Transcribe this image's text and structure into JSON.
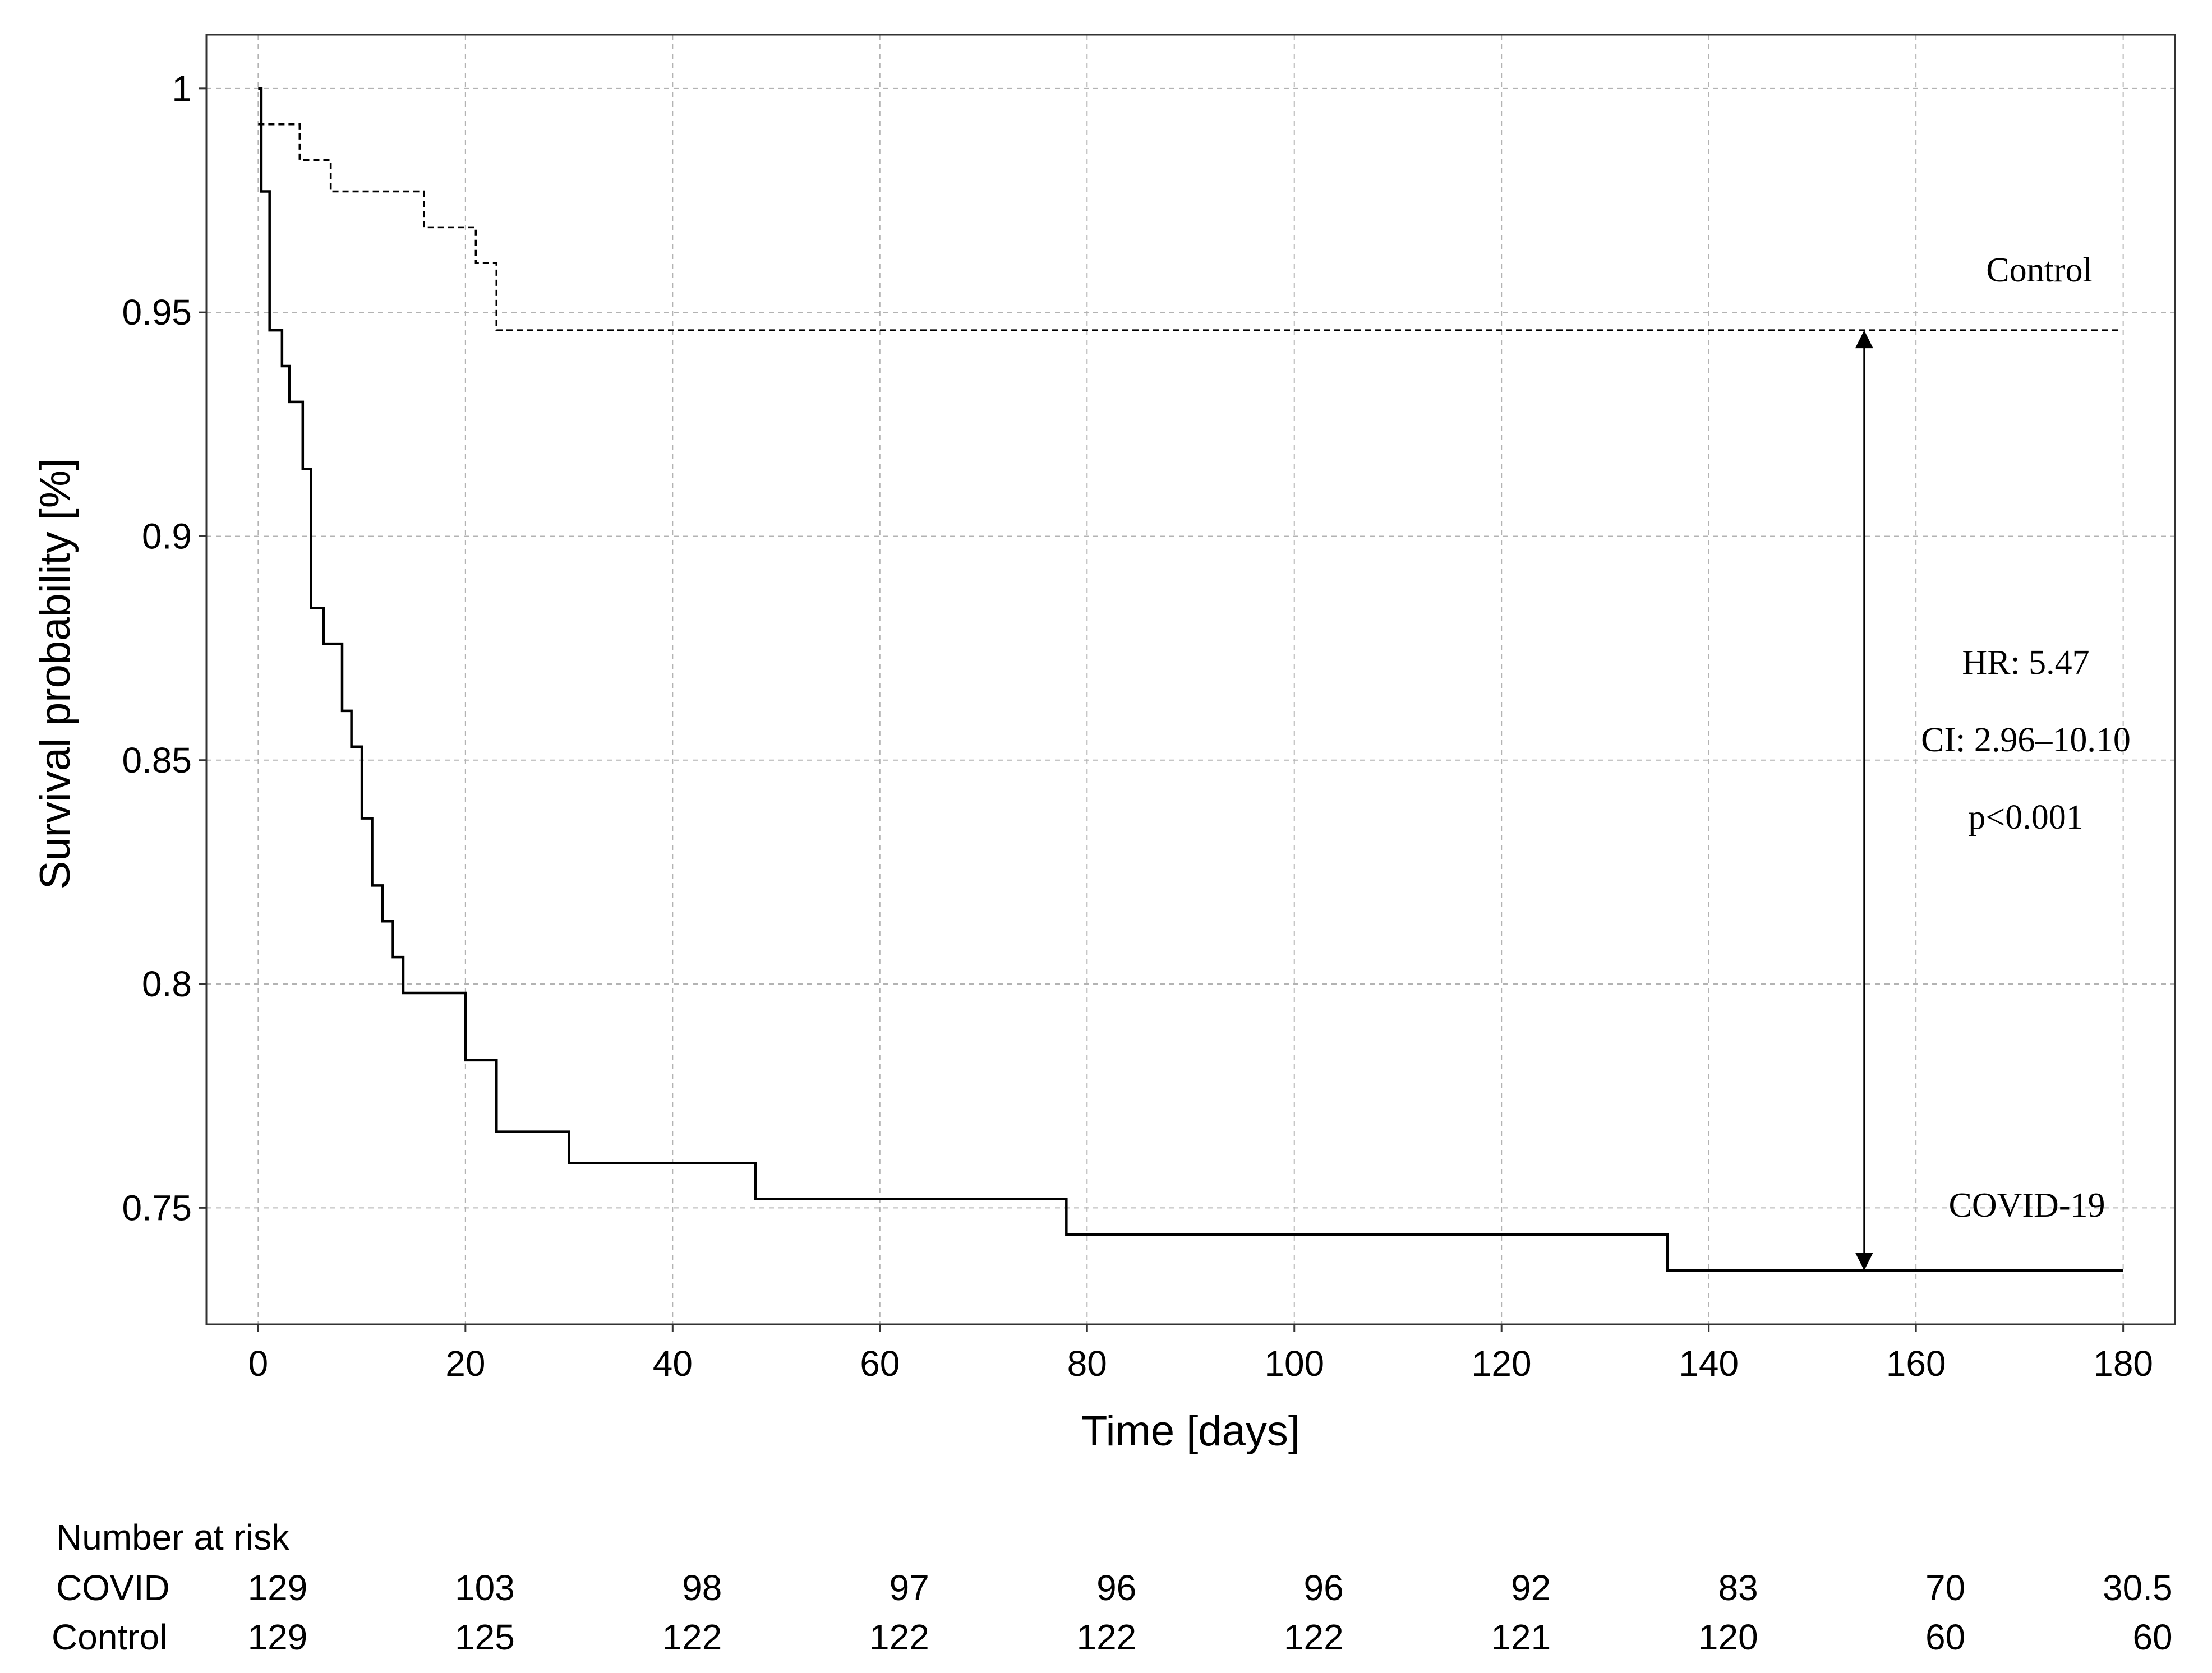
{
  "chart_data": {
    "type": "line",
    "subtype": "kaplan-meier step curve",
    "title": "",
    "xlabel": "Time [days]",
    "ylabel": "Survival probability [%]",
    "xlim": [
      -5,
      185
    ],
    "ylim": [
      0.724,
      1.012
    ],
    "x_ticks": [
      0,
      20,
      40,
      60,
      80,
      100,
      120,
      140,
      160,
      180
    ],
    "y_ticks": [
      0.75,
      0.8,
      0.85,
      0.9,
      0.95,
      1
    ],
    "y_tick_labels": [
      "0.75",
      "0.8",
      "0.85",
      "0.9",
      "0.95",
      "1"
    ],
    "grid": true,
    "series": [
      {
        "name": "COVID-19",
        "line_style": "solid",
        "color": "#000000",
        "points": [
          [
            0,
            1.0
          ],
          [
            0.3,
            0.977
          ],
          [
            1.1,
            0.946
          ],
          [
            2.3,
            0.938
          ],
          [
            3.0,
            0.93
          ],
          [
            4.3,
            0.915
          ],
          [
            5.1,
            0.884
          ],
          [
            6.3,
            0.876
          ],
          [
            8.1,
            0.861
          ],
          [
            9.0,
            0.853
          ],
          [
            10.0,
            0.837
          ],
          [
            11.0,
            0.822
          ],
          [
            12.0,
            0.814
          ],
          [
            13.0,
            0.806
          ],
          [
            14.0,
            0.798
          ],
          [
            20.0,
            0.783
          ],
          [
            23.0,
            0.767
          ],
          [
            30.0,
            0.76
          ],
          [
            48.0,
            0.752
          ],
          [
            78.0,
            0.744
          ],
          [
            136.0,
            0.736
          ],
          [
            180.0,
            0.736
          ]
        ]
      },
      {
        "name": "Control",
        "line_style": "dashed",
        "color": "#000000",
        "points": [
          [
            0,
            0.992
          ],
          [
            4.0,
            0.984
          ],
          [
            7.0,
            0.977
          ],
          [
            16.0,
            0.969
          ],
          [
            21.0,
            0.961
          ],
          [
            23.0,
            0.946
          ],
          [
            179.5,
            0.946
          ]
        ]
      }
    ],
    "annotations": {
      "hr": "HR: 5.47",
      "ci": "CI: 2.96–10.10",
      "p": "p<0.001",
      "arrow": {
        "x": 155,
        "y_from": 0.736,
        "y_to": 0.946
      }
    },
    "risk_table": {
      "title": "Number at risk",
      "rows": [
        {
          "label": "COVID",
          "values": [
            "129",
            "103",
            "98",
            "97",
            "96",
            "96",
            "92",
            "83",
            "70",
            "30.5"
          ]
        },
        {
          "label": "Control",
          "values": [
            "129",
            "125",
            "122",
            "122",
            "122",
            "122",
            "121",
            "120",
            "60",
            "60"
          ]
        }
      ]
    }
  }
}
